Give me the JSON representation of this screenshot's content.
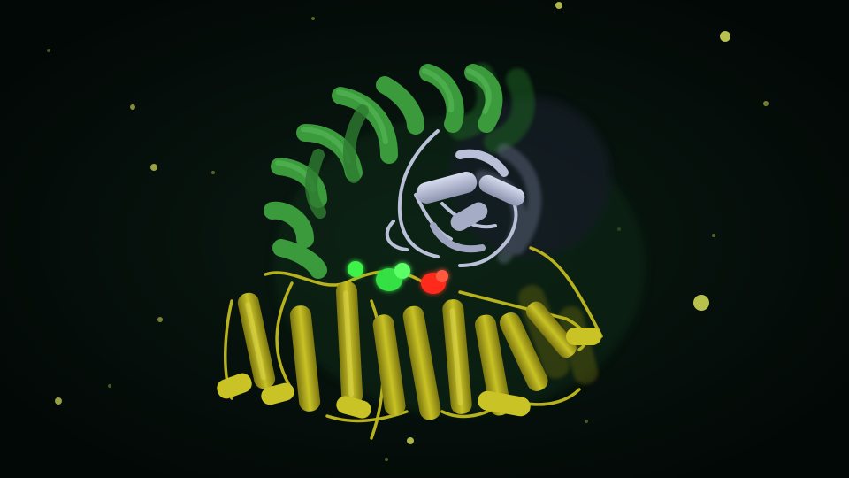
{
  "scene": {
    "description_type": "protein-ribbon-render",
    "colors": {
      "background": "#030c08",
      "background_glow": "#0a1a12",
      "green_domain": "#3a9a3c",
      "green_domain_dark": "#1f5e24",
      "white_domain": "#b9c0d8",
      "white_domain_dark": "#7d84a0",
      "yellow_domain": "#b8b21e",
      "yellow_domain_dark": "#7a7410",
      "highlight_green": "#3df24a",
      "highlight_red": "#ff2a1e",
      "particle": "#d8e05a"
    },
    "parts": [
      {
        "name": "green-helical-domain",
        "color_key": "green_domain"
      },
      {
        "name": "white-globular-domain",
        "color_key": "white_domain"
      },
      {
        "name": "yellow-helix-bundle",
        "color_key": "yellow_domain"
      },
      {
        "name": "green-highlight-residues",
        "color_key": "highlight_green"
      },
      {
        "name": "red-highlight-residues",
        "color_key": "highlight_red"
      }
    ]
  }
}
